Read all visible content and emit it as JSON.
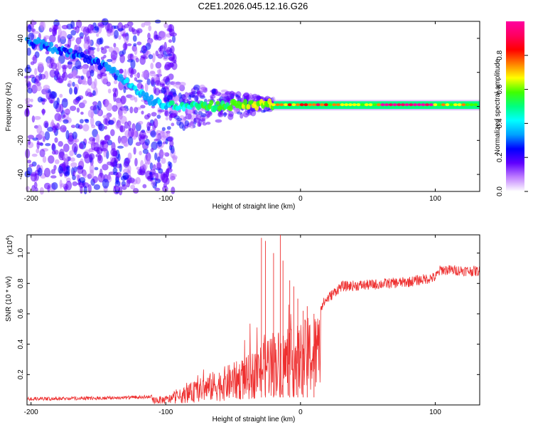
{
  "title": "C2E1.2026.045.12.16.G26",
  "chart_data": [
    {
      "type": "heatmap",
      "name": "spectrogram",
      "xlabel": "Height of straight line (km)",
      "ylabel": "Frequency (Hz)",
      "xlim": [
        -203,
        133
      ],
      "ylim": [
        -50,
        50
      ],
      "xticks": [
        -200,
        -100,
        0,
        100
      ],
      "xtick_labels": [
        "-200",
        "-100",
        "0",
        "100"
      ],
      "yticks": [
        -40,
        -20,
        0,
        20,
        40
      ],
      "ytick_labels": [
        "-40",
        "-20",
        "0",
        "20",
        "40"
      ],
      "colorbar": {
        "label": "Normalized spectral amplitude",
        "range": [
          0,
          1
        ],
        "ticks": [
          0.0,
          0.2,
          0.4,
          0.6,
          0.8
        ],
        "tick_labels": [
          "0.0",
          "0.2",
          "0.4",
          "0.6",
          "0.8"
        ],
        "colormap": [
          "#ffffff",
          "#c080ff",
          "#6000ff",
          "#0000ff",
          "#00a0ff",
          "#00ffff",
          "#00ff80",
          "#40ff00",
          "#ffff00",
          "#ff8000",
          "#ff0000",
          "#ff0060",
          "#ff00a0"
        ]
      },
      "ridge": [
        [
          -200,
          38
        ],
        [
          -190,
          36
        ],
        [
          -180,
          33
        ],
        [
          -170,
          31
        ],
        [
          -160,
          28
        ],
        [
          -150,
          25
        ],
        [
          -140,
          21
        ],
        [
          -130,
          15
        ],
        [
          -120,
          8
        ],
        [
          -110,
          3
        ],
        [
          -100,
          1
        ],
        [
          -80,
          0
        ],
        [
          -60,
          0.5
        ],
        [
          -40,
          1
        ],
        [
          -20,
          1
        ],
        [
          0,
          1
        ],
        [
          50,
          1
        ],
        [
          100,
          1
        ],
        [
          133,
          1
        ]
      ]
    },
    {
      "type": "line",
      "name": "snr",
      "xlabel": "Height of straight line (km)",
      "ylabel": "SNR (10 * v/v)",
      "multiplier": "(x10",
      "multiplier_exp": "4",
      "color": "#ee3030",
      "xlim": [
        -203,
        133
      ],
      "ylim": [
        0,
        1.12
      ],
      "xticks": [
        -200,
        -100,
        0,
        100
      ],
      "xtick_labels": [
        "-200",
        "-100",
        "0",
        "100"
      ],
      "yticks": [
        0.2,
        0.4,
        0.6,
        0.8,
        1.0
      ],
      "ytick_labels": [
        "0.2",
        "0.4",
        "0.6",
        "0.8",
        "1.0"
      ],
      "envelope_x": [
        -203,
        -150,
        -120,
        -100,
        -90,
        -80,
        -70,
        -60,
        -50,
        -40,
        -30,
        -25,
        -20,
        -15,
        -10,
        -5,
        0,
        10,
        20,
        30,
        50,
        80,
        100,
        104,
        133
      ],
      "envelope_y": [
        0.04,
        0.045,
        0.05,
        0.06,
        0.1,
        0.15,
        0.2,
        0.24,
        0.28,
        0.32,
        0.4,
        0.5,
        0.5,
        0.5,
        0.5,
        0.5,
        0.55,
        0.6,
        0.7,
        0.78,
        0.79,
        0.81,
        0.84,
        0.89,
        0.88
      ],
      "spikes": [
        [
          -29,
          1.1
        ],
        [
          -26,
          1.08
        ],
        [
          -20,
          1.0
        ],
        [
          -15,
          1.12
        ],
        [
          -13,
          0.95
        ],
        [
          -8,
          0.82
        ],
        [
          -5,
          0.78
        ],
        [
          -2,
          0.7
        ],
        [
          2,
          0.62
        ],
        [
          5,
          0.65
        ],
        [
          10,
          0.6
        ]
      ]
    }
  ]
}
